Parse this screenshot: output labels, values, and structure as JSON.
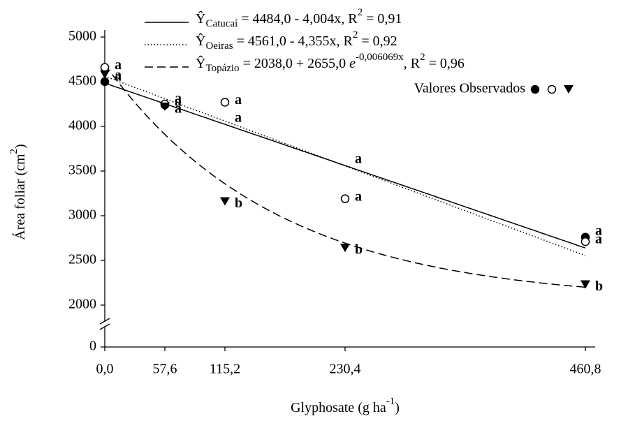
{
  "chart_data": {
    "type": "scatter-fit",
    "x_label": [
      {
        "text": "Glyphosate (g ha"
      },
      {
        "text": "-1",
        "style": "sup"
      },
      {
        "text": ")"
      }
    ],
    "y_label": [
      {
        "text": "Área foliar (cm"
      },
      {
        "text": "2",
        "style": "sup"
      },
      {
        "text": ")"
      }
    ],
    "x": [
      0,
      57.6,
      115.2,
      230.4,
      460.8
    ],
    "xlim": [
      0,
      460.8
    ],
    "xticks": [
      {
        "value": 0,
        "label": "0,0"
      },
      {
        "value": 57.6,
        "label": "57,6"
      },
      {
        "value": 115.2,
        "label": "115,2"
      },
      {
        "value": 230.4,
        "label": "230,4"
      },
      {
        "value": 460.8,
        "label": "460,8"
      }
    ],
    "ylim": [
      0,
      5000
    ],
    "y_break": [
      0,
      2000
    ],
    "yticks": [
      0,
      2000,
      2500,
      3000,
      3500,
      4000,
      4500,
      5000
    ],
    "observed_label": "Valores Observados",
    "series": [
      {
        "name": "Catucaí",
        "color": "#000000",
        "marker": "filled-circle",
        "dash": "solid",
        "values": [
          4500,
          4240,
          null,
          null,
          2760
        ],
        "letters": [
          "a",
          "a",
          "a",
          "a",
          "a"
        ],
        "fit": {
          "kind": "linear",
          "a": 4484.0,
          "b": -4.004
        },
        "equation": [
          {
            "text": "Ŷ"
          },
          {
            "text": "Catucaí",
            "style": "sub"
          },
          {
            "text": " = 4484,0 - 4,004x, R"
          },
          {
            "text": "2",
            "style": "sup"
          },
          {
            "text": " = 0,91"
          }
        ]
      },
      {
        "name": "Oeiras",
        "color": "#000000",
        "marker": "open-circle",
        "dash": "dotted",
        "values": [
          4660,
          4250,
          4270,
          3190,
          2710
        ],
        "letters": [
          "a",
          "a",
          "a",
          "a",
          "a"
        ],
        "fit": {
          "kind": "linear",
          "a": 4561.0,
          "b": -4.355
        },
        "equation": [
          {
            "text": "Ŷ"
          },
          {
            "text": "Oeiras",
            "style": "sub"
          },
          {
            "text": " = 4561,0 - 4,355x, R"
          },
          {
            "text": "2",
            "style": "sup"
          },
          {
            "text": " = 0,92"
          }
        ]
      },
      {
        "name": "Topázio",
        "color": "#000000",
        "marker": "triangle",
        "dash": "dashed",
        "values": [
          4580,
          4220,
          3160,
          2640,
          2230
        ],
        "letters": [
          "a",
          "a",
          "b",
          "b",
          "b"
        ],
        "fit": {
          "kind": "exp",
          "a": 2038.0,
          "b": 2655.0,
          "k": -0.006069
        },
        "equation": [
          {
            "text": "Ŷ"
          },
          {
            "text": "Topázio",
            "style": "sub"
          },
          {
            "text": " = 2038,0 + 2655,0 "
          },
          {
            "text": "e",
            "style": "italic"
          },
          {
            "text": "-0,006069x",
            "style": "sup"
          },
          {
            "text": ", R"
          },
          {
            "text": "2",
            "style": "sup"
          },
          {
            "text": " = 0,96"
          }
        ]
      }
    ]
  }
}
